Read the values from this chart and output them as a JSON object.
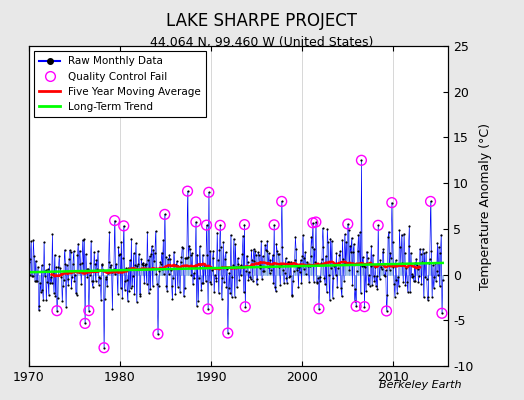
{
  "title": "LAKE SHARPE PROJECT",
  "subtitle": "44.064 N, 99.460 W (United States)",
  "ylabel_right": "Temperature Anomaly (°C)",
  "attribution": "Berkeley Earth",
  "xlim": [
    1970,
    2016
  ],
  "ylim": [
    -10,
    25
  ],
  "yticks_right": [
    -10,
    -5,
    0,
    5,
    10,
    15,
    20,
    25
  ],
  "xticks": [
    1970,
    1980,
    1990,
    2000,
    2010
  ],
  "bg_color": "#e8e8e8",
  "plot_bg": "#ffffff",
  "seed": 42
}
